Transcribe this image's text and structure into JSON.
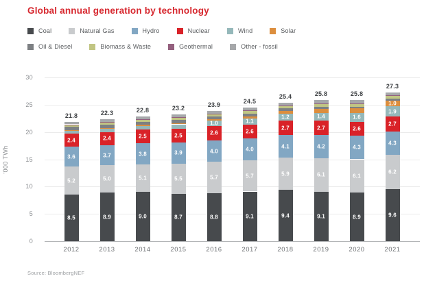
{
  "title": "Global annual generation by technology",
  "source": "Source: BloombergNEF",
  "chart_data": {
    "type": "bar",
    "variant": "stacked-vertical",
    "title": "Global annual generation by technology",
    "ylabel": "'000 TWh",
    "ylim": [
      0,
      30
    ],
    "yticks": [
      0,
      5,
      10,
      15,
      20,
      25,
      30
    ],
    "grid": true,
    "legend_position": "top",
    "categories": [
      "2012",
      "2013",
      "2014",
      "2015",
      "2016",
      "2017",
      "2018",
      "2019",
      "2020",
      "2021"
    ],
    "totals": [
      21.8,
      22.3,
      22.8,
      23.2,
      23.9,
      24.5,
      25.4,
      25.8,
      25.8,
      27.3
    ],
    "label_threshold": 1.0,
    "series": [
      {
        "name": "Coal",
        "color": "#474a4d",
        "values": [
          8.5,
          8.9,
          9.0,
          8.7,
          8.8,
          9.1,
          9.4,
          9.1,
          8.9,
          9.6
        ]
      },
      {
        "name": "Natural Gas",
        "color": "#c9cbcd",
        "values": [
          5.2,
          5.0,
          5.1,
          5.5,
          5.7,
          5.7,
          5.9,
          6.1,
          6.1,
          6.2
        ]
      },
      {
        "name": "Hydro",
        "color": "#82a7c3",
        "values": [
          3.6,
          3.7,
          3.8,
          3.9,
          4.0,
          4.0,
          4.1,
          4.2,
          4.3,
          4.3
        ]
      },
      {
        "name": "Nuclear",
        "color": "#d92228",
        "values": [
          2.4,
          2.4,
          2.5,
          2.5,
          2.6,
          2.6,
          2.7,
          2.7,
          2.6,
          2.7
        ]
      },
      {
        "name": "Wind",
        "color": "#95b8ba",
        "values": [
          0.5,
          0.6,
          0.7,
          0.8,
          1.0,
          1.1,
          1.2,
          1.4,
          1.6,
          1.9
        ]
      },
      {
        "name": "Solar",
        "color": "#dc8e3e",
        "values": [
          0.1,
          0.1,
          0.2,
          0.2,
          0.3,
          0.4,
          0.6,
          0.7,
          0.8,
          1.0
        ]
      },
      {
        "name": "Oil & Diesel",
        "color": "#7d8083",
        "values": [
          0.6,
          0.6,
          0.5,
          0.6,
          0.5,
          0.5,
          0.4,
          0.4,
          0.3,
          0.4
        ]
      },
      {
        "name": "Biomass & Waste",
        "color": "#c1c583",
        "values": [
          0.4,
          0.4,
          0.4,
          0.4,
          0.4,
          0.5,
          0.5,
          0.5,
          0.5,
          0.5
        ]
      },
      {
        "name": "Geothermal",
        "color": "#94607e",
        "values": [
          0.1,
          0.1,
          0.1,
          0.1,
          0.1,
          0.1,
          0.1,
          0.1,
          0.1,
          0.1
        ]
      },
      {
        "name": "Other - fossil",
        "color": "#a6a8aa",
        "values": [
          0.4,
          0.5,
          0.5,
          0.5,
          0.5,
          0.5,
          0.5,
          0.6,
          0.6,
          0.6
        ]
      }
    ],
    "legend_rows": [
      [
        0,
        1,
        2,
        3,
        4,
        5
      ],
      [
        6,
        7,
        8,
        9
      ]
    ]
  }
}
